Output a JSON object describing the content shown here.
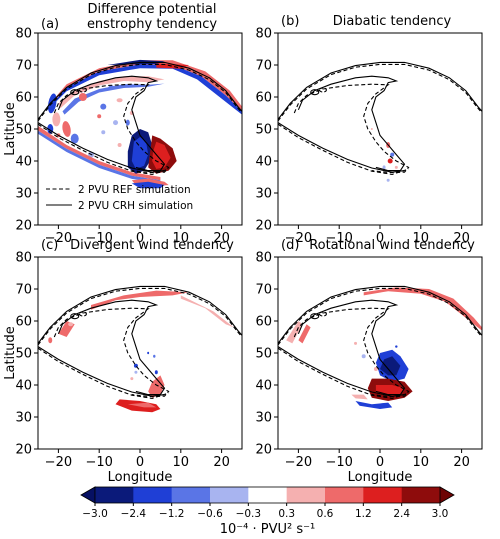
{
  "chart_data": {
    "type": "heatmap",
    "figure_layout": "2x2 panel map of potential enstrophy tendency",
    "panels": [
      {
        "tag": "(a)",
        "title": [
          "Difference potential",
          "enstrophy tendency"
        ],
        "show_legend": true,
        "feature": "difference"
      },
      {
        "tag": "(b)",
        "title": [
          "Diabatic tendency"
        ],
        "show_legend": false,
        "feature": "diabatic"
      },
      {
        "tag": "(c)",
        "title": [
          "Divergent wind tendency"
        ],
        "show_legend": false,
        "feature": "divergent"
      },
      {
        "tag": "(d)",
        "title": [
          "Rotational wind tendency"
        ],
        "show_legend": false,
        "feature": "rotational"
      }
    ],
    "xlabel": "Longitude",
    "ylabel": "Latitude",
    "xlim": [
      -25,
      25
    ],
    "ylim": [
      20,
      80
    ],
    "xticks": [
      -20,
      -10,
      0,
      10,
      20
    ],
    "yticks": [
      20,
      30,
      40,
      50,
      60,
      70,
      80
    ],
    "legend": [
      {
        "label": "2 PVU REF simulation",
        "style": "dashed"
      },
      {
        "label": "2 PVU CRH simulation",
        "style": "solid"
      }
    ],
    "colorbar": {
      "levels": [
        -3.0,
        -2.4,
        -1.2,
        -0.6,
        -0.3,
        0.3,
        0.6,
        1.2,
        2.4,
        3.0
      ],
      "tick_labels": [
        "−3.0",
        "−2.4",
        "−1.2",
        "−0.6",
        "−0.3",
        "0.3",
        "0.6",
        "1.2",
        "2.4",
        "3.0"
      ],
      "colors": [
        "#0b1a7a",
        "#1f3fd6",
        "#5a75e6",
        "#a8b4f0",
        "#ffffff",
        "#f5b0b0",
        "#ee6a6a",
        "#dd1f1f",
        "#8e0c0c"
      ],
      "extend_colors": {
        "min": "#061063",
        "max": "#6e0404"
      },
      "unit_label": "10⁻⁴ · PVU² s⁻¹"
    }
  }
}
